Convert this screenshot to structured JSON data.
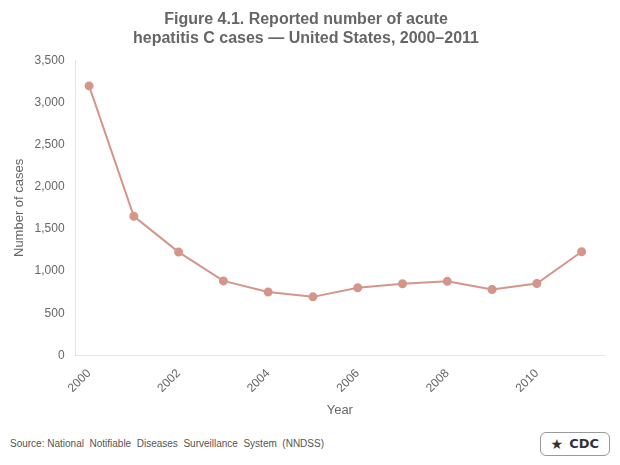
{
  "chart_data": {
    "type": "line",
    "title": [
      "Figure 4.1. Reported number of acute",
      "hepatitis C cases — United States, 2000–2011"
    ],
    "xlabel": "Year",
    "ylabel": "Number of cases",
    "annotations": [
      "Source: National  Notifiable  Diseases  Surveillance  System  (NNDSS)",
      "★",
      "CDC"
    ],
    "x": [
      2000,
      2001,
      2002,
      2003,
      2004,
      2005,
      2006,
      2007,
      2008,
      2009,
      2010,
      2011
    ],
    "values": [
      3197,
      1650,
      1225,
      883,
      751,
      694,
      802,
      849,
      878,
      781,
      853,
      1229
    ],
    "color": "#d4968a",
    "marker": "circle",
    "grid": false,
    "xlim": [
      1999.7,
      2011.5
    ],
    "xticks": [
      2000,
      2002,
      2004,
      2006,
      2008,
      2010
    ],
    "ylim": [
      0,
      3500
    ],
    "yticks": [
      0,
      500,
      {
        "value": 1000,
        "label": "1,000"
      },
      {
        "value": 1500,
        "label": "1,500"
      },
      {
        "value": 2000,
        "label": "2,000"
      },
      {
        "value": 2500,
        "label": "2,500"
      },
      {
        "value": 3000,
        "label": "3,000"
      },
      {
        "value": 3500,
        "label": "3,500"
      }
    ]
  }
}
